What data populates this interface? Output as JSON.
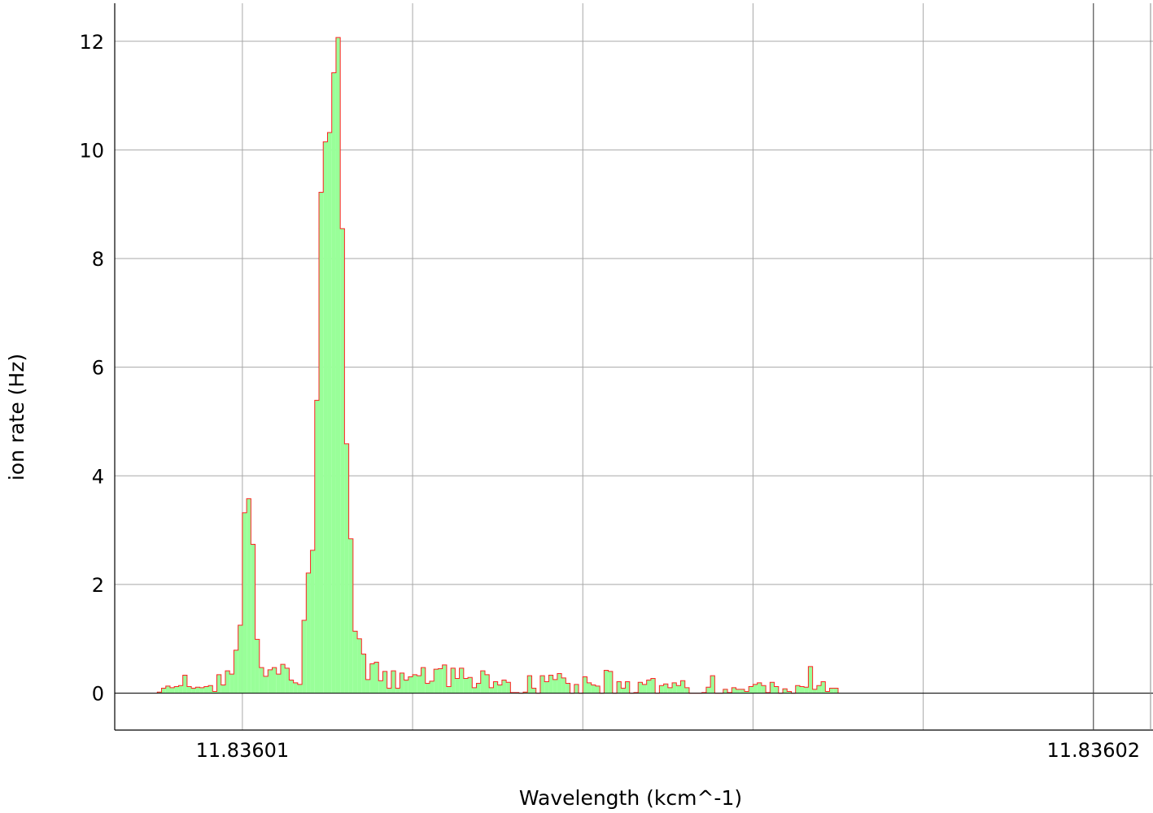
{
  "chart_data": {
    "type": "bar",
    "style": "step-histogram",
    "xlabel": "Wavelength (kcm^-1)",
    "ylabel": "ion rate (Hz)",
    "xlim": [
      11.8360085,
      11.8360207
    ],
    "ylim": [
      -0.68,
      12.7
    ],
    "x_ticks": [
      11.83601,
      11.83602
    ],
    "x_tick_labels": [
      "11.83601",
      "11.83602"
    ],
    "y_ticks": [
      0,
      2,
      4,
      6,
      8,
      10,
      12
    ],
    "y_tick_labels": [
      "0",
      "2",
      "4",
      "6",
      "8",
      "10",
      "12"
    ],
    "grid": true,
    "bin_start": 11.836009,
    "bin_width": 5e-08,
    "values": [
      0.02,
      0.09,
      0.13,
      0.1,
      0.12,
      0.14,
      0.33,
      0.12,
      0.09,
      0.11,
      0.1,
      0.12,
      0.14,
      0.03,
      0.34,
      0.15,
      0.41,
      0.35,
      0.79,
      1.25,
      3.32,
      3.58,
      2.74,
      0.99,
      0.47,
      0.31,
      0.43,
      0.47,
      0.35,
      0.53,
      0.46,
      0.24,
      0.19,
      0.16,
      1.34,
      2.21,
      2.63,
      5.39,
      9.22,
      10.15,
      10.32,
      11.42,
      12.07,
      8.55,
      4.59,
      2.84,
      1.14,
      1.0,
      0.72,
      0.25,
      0.54,
      0.57,
      0.23,
      0.4,
      0.09,
      0.41,
      0.09,
      0.37,
      0.24,
      0.3,
      0.34,
      0.32,
      0.47,
      0.18,
      0.22,
      0.44,
      0.45,
      0.52,
      0.12,
      0.46,
      0.27,
      0.46,
      0.27,
      0.29,
      0.1,
      0.18,
      0.41,
      0.34,
      0.1,
      0.21,
      0.15,
      0.24,
      0.2,
      0.01,
      0.01,
      0.0,
      0.02,
      0.32,
      0.09,
      0.0,
      0.32,
      0.21,
      0.33,
      0.25,
      0.36,
      0.28,
      0.18,
      0.0,
      0.16,
      0.0,
      0.3,
      0.19,
      0.15,
      0.13,
      0.0,
      0.42,
      0.4,
      0.0,
      0.21,
      0.09,
      0.21,
      0.0,
      0.01,
      0.2,
      0.16,
      0.24,
      0.27,
      0.0,
      0.14,
      0.17,
      0.1,
      0.19,
      0.14,
      0.23,
      0.1,
      0.0,
      0.0,
      0.0,
      0.01,
      0.11,
      0.32,
      0.0,
      0.0,
      0.07,
      0.01,
      0.1,
      0.07,
      0.07,
      0.03,
      0.12,
      0.16,
      0.19,
      0.14,
      0.01,
      0.2,
      0.12,
      0.0,
      0.08,
      0.03,
      0.0,
      0.14,
      0.12,
      0.11,
      0.49,
      0.07,
      0.14,
      0.21,
      0.03,
      0.09,
      0.09
    ],
    "colors": {
      "fill": "#99ff99",
      "stroke": "#ff2222",
      "grid": "#a8a8a8",
      "axis": "#000000",
      "marker_line": "#444444"
    }
  }
}
